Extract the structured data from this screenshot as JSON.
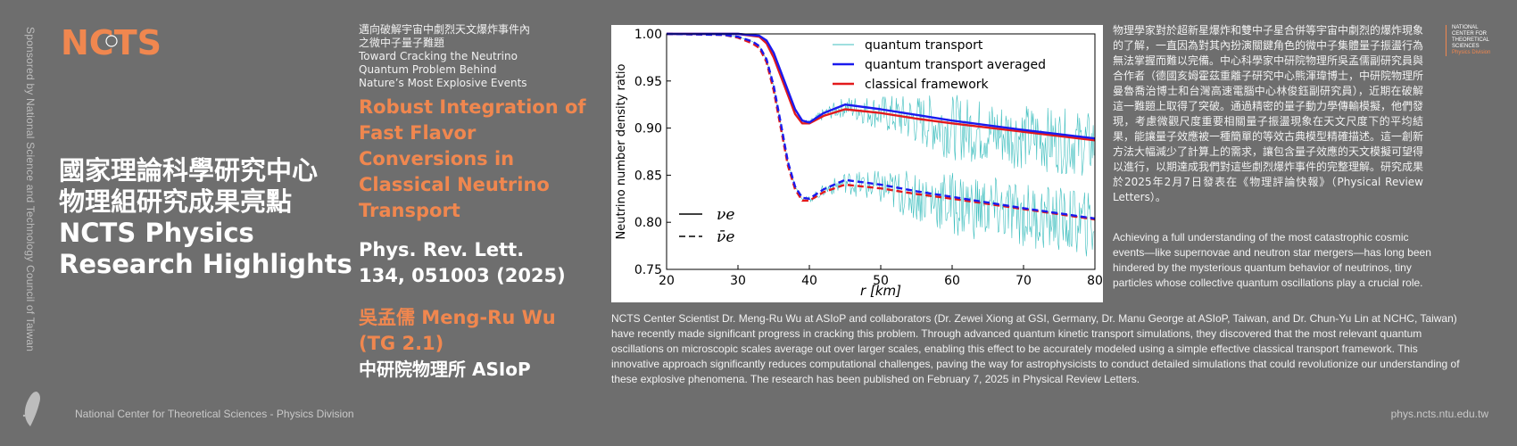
{
  "sponsor": "Sponsored by National Science and Technology Council of Taiwan",
  "logo": {
    "text": "NCTS",
    "color": "#f0874f"
  },
  "headline": {
    "line1": "國家理論科學研究中心",
    "line2": "物理組研究成果亮點",
    "line3": "NCTS Physics",
    "line4": "Research Highlights"
  },
  "subtitle": {
    "zh1": "邁向破解宇宙中劇烈天文爆炸事件內",
    "zh2": "之微中子量子難題",
    "en1": "Toward Cracking the Neutrino",
    "en2": "Quantum Problem Behind",
    "en3": "Nature’s Most Explosive Events"
  },
  "paper_title": {
    "l1": "Robust Integration of",
    "l2": "Fast Flavor",
    "l3": "Conversions in",
    "l4": "Classical Neutrino",
    "l5": "Transport"
  },
  "citation": {
    "l1": "Phys. Rev. Lett.",
    "l2": "134, 051003 (2025)"
  },
  "author": {
    "l1": "吳孟儒 Meng-Ru Wu",
    "l2": "(TG 2.1)"
  },
  "affiliation": "中研院物理所 ASIoP",
  "zh_paragraph": "物理學家對於超新星爆炸和雙中子星合併等宇宙中劇烈的爆炸現象的了解，一直因為對其內扮演關鍵角色的微中子集體量子振盪行為無法掌握而難以完備。中心科學家中研院物理所吳孟儒副研究員與合作者（德國亥姆霍茲重離子研究中心熊渾瑋博士，中研院物理所曼魯喬治博士和台灣高速電腦中心林俊鈺副研究員），近期在破解這一難題上取得了突破。通過精密的量子動力學傳輸模擬，他們發現，考慮微觀尺度重要相關量子振盪現象在天文尺度下的平均結果，能讓量子效應被一種簡單的等效古典模型精確描述。這一創新方法大幅減少了計算上的需求，讓包含量子效應的天文模擬可望得以進行，以期達成我們對這些劇烈爆炸事件的完整理解。研究成果於2025年2月7日發表在《物理評論快報》（Physical Review Letters）。",
  "en_paragraph1": "Achieving a full understanding of the most catastrophic cosmic events—like supernovae and neutron star mergers—has long been hindered by the mysterious quantum behavior of neutrinos, tiny particles whose collective quantum oscillations play a crucial role.",
  "en_paragraph2": "NCTS Center Scientist Dr. Meng-Ru Wu at ASIoP and collaborators (Dr. Zewei Xiong at GSI, Germany, Dr. Manu George at ASIoP, Taiwan, and Dr. Chun-Yu Lin at NCHC, Taiwan) have recently made significant progress in cracking this problem. Through advanced quantum kinetic transport simulations, they discovered that the most relevant quantum oscillations on microscopic scales average out over larger scales, enabling this effect to be accurately modeled using a simple effective classical transport framework. This innovative approach significantly reduces computational challenges, paving the way for astrophysicists to conduct detailed simulations that could revolutionize our understanding of these explosive phenomena. The research has been published on February 7, 2025 in Physical Review Letters.",
  "corner_logo": {
    "l1": "NATIONAL",
    "l2": "CENTER FOR",
    "l3": "THEORETICAL",
    "l4": "SCIENCES",
    "l5": "Physics Division"
  },
  "footer": {
    "left": "National Center for Theoretical Sciences - Physics Division",
    "right": "phys.ncts.ntu.edu.tw"
  },
  "chart_data": {
    "type": "line",
    "xlabel": "r [km]",
    "ylabel": "Neutrino number density ratio",
    "xlim": [
      20,
      80
    ],
    "ylim": [
      0.75,
      1.0
    ],
    "xticks": [
      "20",
      "30",
      "40",
      "50",
      "60",
      "70",
      "80"
    ],
    "yticks": [
      "0.75",
      "0.80",
      "0.85",
      "0.90",
      "0.95",
      "1.00"
    ],
    "legend_location": "top-right",
    "legend": [
      {
        "name": "quantum transport",
        "color": "#3fbfbf"
      },
      {
        "name": "quantum transport averaged",
        "color": "#1a1aee"
      },
      {
        "name": "classical framework",
        "color": "#e31a1c"
      }
    ],
    "style_legend": [
      {
        "label": "νe",
        "style": "solid"
      },
      {
        "label": "ν̄e",
        "style": "dashed"
      }
    ],
    "series": [
      {
        "name": "classical nu_e",
        "color": "#e31a1c",
        "style": "solid",
        "x": [
          20,
          30,
          33,
          34,
          35,
          36,
          37,
          38,
          39,
          40,
          42,
          45,
          50,
          55,
          60,
          70,
          80
        ],
        "y": [
          1.0,
          1.0,
          0.997,
          0.99,
          0.975,
          0.955,
          0.935,
          0.915,
          0.905,
          0.905,
          0.913,
          0.92,
          0.916,
          0.91,
          0.905,
          0.896,
          0.887
        ]
      },
      {
        "name": "averaged nu_e",
        "color": "#1a1aee",
        "style": "solid",
        "x": [
          20,
          30,
          33,
          34,
          35,
          36,
          37,
          38,
          39,
          40,
          42,
          45,
          50,
          55,
          60,
          70,
          80
        ],
        "y": [
          1.0,
          1.0,
          0.998,
          0.993,
          0.98,
          0.96,
          0.94,
          0.92,
          0.908,
          0.906,
          0.916,
          0.925,
          0.92,
          0.914,
          0.908,
          0.898,
          0.889
        ]
      },
      {
        "name": "classical anti-nu_e",
        "color": "#e31a1c",
        "style": "dashed",
        "x": [
          20,
          28,
          30,
          32,
          33,
          34,
          35,
          36,
          37,
          38,
          39,
          40,
          42,
          45,
          50,
          55,
          60,
          70,
          80
        ],
        "y": [
          1.0,
          0.999,
          0.996,
          0.99,
          0.985,
          0.97,
          0.94,
          0.9,
          0.86,
          0.835,
          0.823,
          0.823,
          0.832,
          0.84,
          0.836,
          0.83,
          0.825,
          0.814,
          0.803
        ]
      },
      {
        "name": "averaged anti-nu_e",
        "color": "#1a1aee",
        "style": "dashed",
        "x": [
          20,
          28,
          30,
          32,
          33,
          34,
          35,
          36,
          37,
          38,
          39,
          40,
          42,
          45,
          50,
          55,
          60,
          70,
          80
        ],
        "y": [
          1.0,
          0.999,
          0.997,
          0.992,
          0.987,
          0.973,
          0.945,
          0.905,
          0.864,
          0.838,
          0.826,
          0.825,
          0.835,
          0.845,
          0.84,
          0.833,
          0.827,
          0.815,
          0.804
        ]
      }
    ]
  }
}
